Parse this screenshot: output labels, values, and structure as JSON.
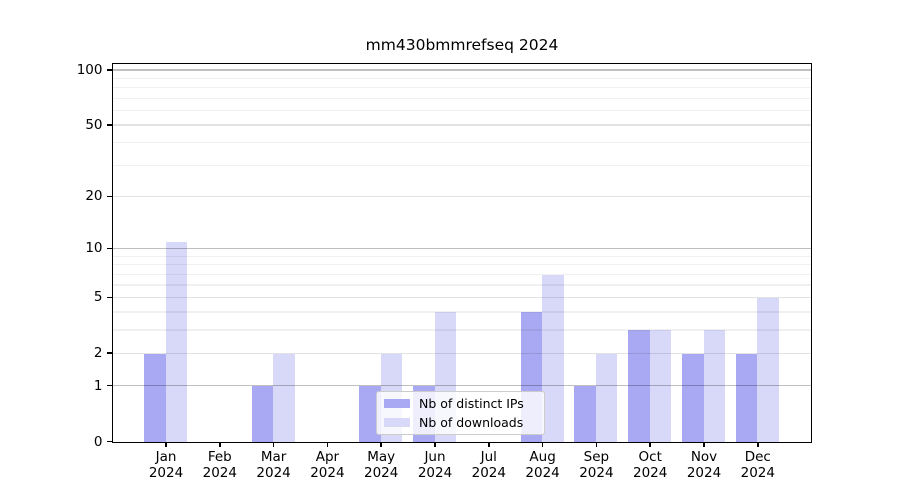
{
  "title": "mm430bmmrefseq 2024",
  "chart_data": {
    "type": "bar",
    "title": "mm430bmmrefseq 2024",
    "categories": [
      "Jan",
      "Feb",
      "Mar",
      "Apr",
      "May",
      "Jun",
      "Jul",
      "Aug",
      "Sep",
      "Oct",
      "Nov",
      "Dec"
    ],
    "category_year": "2024",
    "series": [
      {
        "name": "Nb of distinct IPs",
        "color": "#a9a9f3",
        "values": [
          2,
          0,
          1,
          0,
          1,
          1,
          0,
          4,
          1,
          3,
          2,
          2
        ]
      },
      {
        "name": "Nb of downloads",
        "color": "#d8d8f9",
        "values": [
          11,
          0,
          2,
          0,
          2,
          4,
          0,
          7,
          2,
          3,
          3,
          5
        ]
      }
    ],
    "yscale": "log1p",
    "yticks": [
      0,
      1,
      2,
      5,
      10,
      20,
      50,
      100
    ],
    "yticks_minor": [
      3,
      4,
      6,
      7,
      8,
      9,
      30,
      40,
      60,
      70,
      80,
      90
    ],
    "ylim": [
      0,
      111
    ],
    "xlabel": "",
    "ylabel": "",
    "grid": true,
    "legend_position": "lower-center"
  }
}
